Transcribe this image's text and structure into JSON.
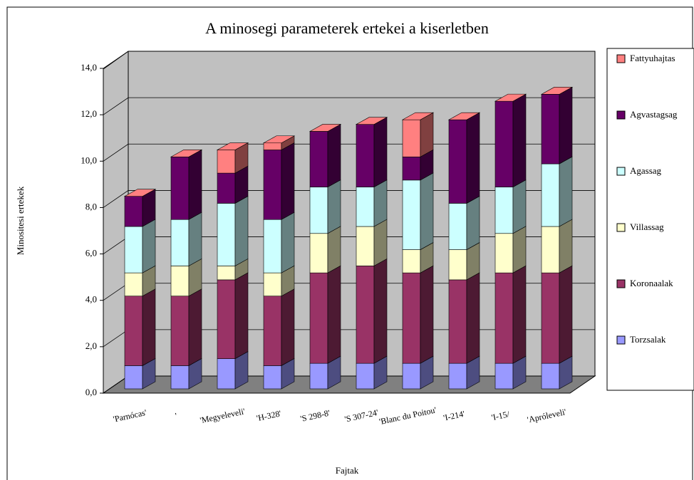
{
  "chart_data": {
    "type": "bar3d_stacked",
    "title": "A minosegi parameterek ertekei a kiserletben",
    "x_label": "Fajtak",
    "y_label": "Minositesi ertekek",
    "categories": [
      "'Parnócas'",
      "'",
      "'Megyeleveli'",
      "'H-328'",
      "'S 298-8'",
      "'S 307-24'",
      "'Blanc du Poitou'",
      "'I-214'",
      "'I-15/",
      "'Apróleveli'"
    ],
    "series": [
      {
        "name": "Torzsalak",
        "color": "#9999ff",
        "side": "#4d4d80",
        "values": [
          1.0,
          1.0,
          1.3,
          1.0,
          1.1,
          1.1,
          1.1,
          1.1,
          1.1,
          1.1
        ]
      },
      {
        "name": "Koronaalak",
        "color": "#993366",
        "side": "#4d1a33",
        "values": [
          3.0,
          3.0,
          3.4,
          3.0,
          3.9,
          4.2,
          3.9,
          3.6,
          3.9,
          3.9
        ]
      },
      {
        "name": "Villassag",
        "color": "#ffffcc",
        "side": "#808066",
        "values": [
          1.0,
          1.3,
          0.6,
          1.0,
          1.7,
          1.7,
          1.0,
          1.3,
          1.7,
          2.0
        ]
      },
      {
        "name": "Agassag",
        "color": "#ccffff",
        "side": "#668080",
        "values": [
          2.0,
          2.0,
          2.7,
          2.3,
          2.0,
          1.7,
          3.0,
          2.0,
          2.0,
          2.7
        ]
      },
      {
        "name": "Agvastagsag",
        "color": "#660066",
        "side": "#330033",
        "values": [
          1.3,
          2.7,
          1.3,
          3.0,
          2.4,
          2.7,
          1.0,
          3.6,
          3.7,
          3.0
        ]
      },
      {
        "name": "Fattyuhajtas",
        "color": "#ff8080",
        "side": "#804040",
        "values": [
          0,
          0,
          1.0,
          0.3,
          0,
          0,
          1.6,
          0,
          0,
          0
        ]
      }
    ],
    "ylim": [
      0,
      14
    ],
    "yticks": [
      {
        "value": 0,
        "label": "0,0"
      },
      {
        "value": 2,
        "label": "2,0"
      },
      {
        "value": 4,
        "label": "4,0"
      },
      {
        "value": 6,
        "label": "6,0"
      },
      {
        "value": 8,
        "label": "8,0"
      },
      {
        "value": 10,
        "label": "10,0"
      },
      {
        "value": 12,
        "label": "12,0"
      },
      {
        "value": 14,
        "label": "14,0"
      }
    ],
    "grid": true
  }
}
